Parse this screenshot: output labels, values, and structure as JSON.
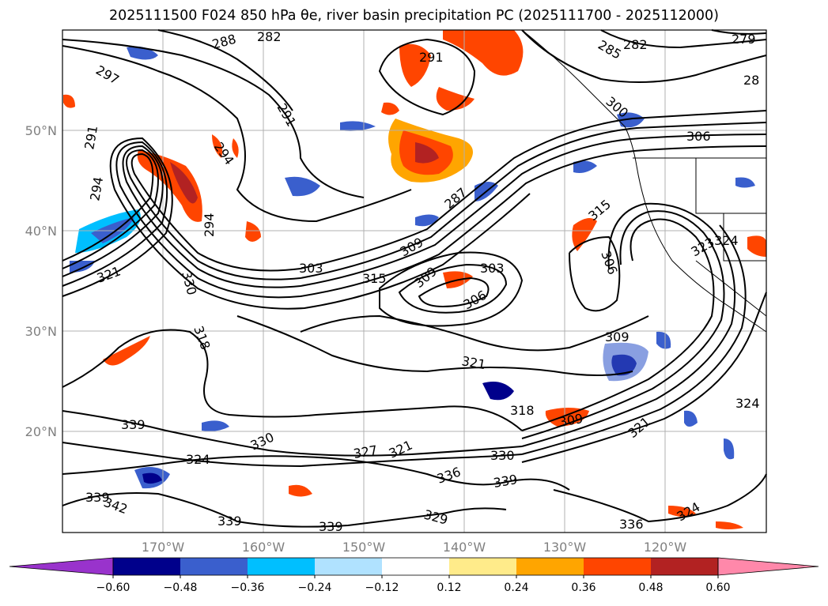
{
  "title": "2025111500 F024 850 hPa θe, river basin precipitation PC (2025111700 - 2025112000)",
  "map": {
    "lon_range": [
      -180,
      -110
    ],
    "lat_range": [
      10,
      60
    ],
    "lat_labels": [
      "50°N",
      "40°N",
      "30°N",
      "20°N"
    ],
    "lon_labels": [
      "170°W",
      "160°W",
      "150°W",
      "140°W",
      "130°W",
      "120°W"
    ],
    "contour_labels": [
      "291",
      "297",
      "282",
      "288",
      "291",
      "291",
      "294",
      "285",
      "282",
      "279",
      "28",
      "300",
      "306",
      "294",
      "294",
      "287",
      "309",
      "303",
      "315",
      "309",
      "303",
      "306",
      "315",
      "324",
      "323",
      "306",
      "330",
      "321",
      "309",
      "318",
      "321",
      "318",
      "309",
      "324",
      "330",
      "327",
      "321",
      "336",
      "339",
      "330",
      "324",
      "339",
      "342",
      "339",
      "339",
      "339",
      "329",
      "336",
      "324",
      "321"
    ]
  },
  "colorbar": {
    "colors": [
      "#9933cc",
      "#00008b",
      "#3a5fcd",
      "#00bfff",
      "#b0e2ff",
      "#ffffff",
      "#ffeb8a",
      "#ffa500",
      "#ff4500",
      "#b22222",
      "#ff88aa"
    ],
    "tick_labels": [
      "−0.60",
      "−0.48",
      "−0.36",
      "−0.24",
      "−0.12",
      "0.12",
      "0.24",
      "0.36",
      "0.48",
      "0.60"
    ]
  }
}
